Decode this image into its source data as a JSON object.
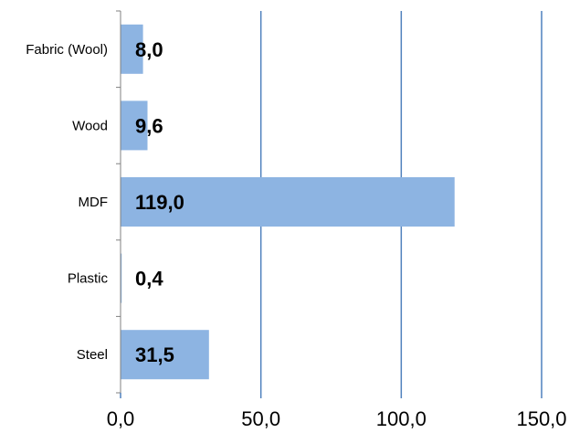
{
  "chart_data": {
    "type": "bar",
    "orientation": "horizontal",
    "categories": [
      "Fabric (Wool)",
      "Wood",
      "MDF",
      "Plastic",
      "Steel"
    ],
    "values": [
      8.0,
      9.6,
      119.0,
      0.4,
      31.5
    ],
    "data_labels": [
      "8,0",
      "9,6",
      "119,0",
      "0,4",
      "31,5"
    ],
    "x_ticks": [
      0,
      50,
      100,
      150
    ],
    "x_tick_labels": [
      "0,0",
      "50,0",
      "100,0",
      "150,0"
    ],
    "xlim": [
      0,
      150
    ],
    "grid": "vertical major gridlines",
    "legend": "none",
    "title": "",
    "xlabel": "",
    "ylabel": "",
    "colors": {
      "bar": "#8DB4E2",
      "grid": "#4F81BD",
      "axis": "#808080"
    }
  }
}
